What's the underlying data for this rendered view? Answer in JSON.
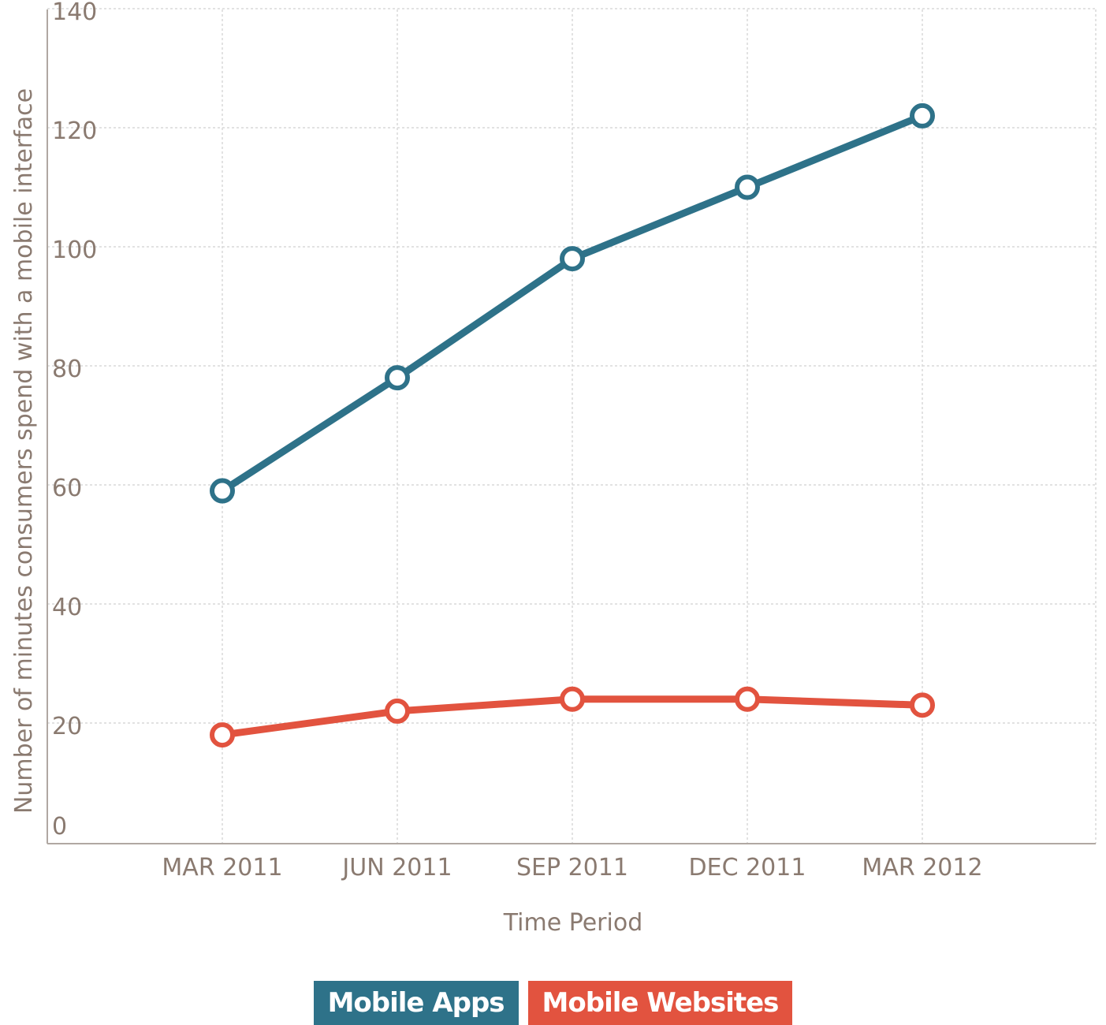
{
  "chart_data": {
    "type": "line",
    "xlabel": "Time Period",
    "ylabel": "Number of minutes consumers spend with a mobile interface",
    "categories": [
      "MAR 2011",
      "JUN 2011",
      "SEP 2011",
      "DEC 2011",
      "MAR 2012"
    ],
    "ylim": [
      0,
      140
    ],
    "yticks": [
      0,
      20,
      40,
      60,
      80,
      100,
      120,
      140
    ],
    "grid": true,
    "legend_position": "bottom-center",
    "series": [
      {
        "name": "Mobile Apps",
        "color": "#2e7289",
        "values": [
          59,
          78,
          98,
          110,
          122
        ]
      },
      {
        "name": "Mobile Websites",
        "color": "#e2533f",
        "values": [
          18,
          22,
          24,
          24,
          23
        ]
      }
    ]
  }
}
